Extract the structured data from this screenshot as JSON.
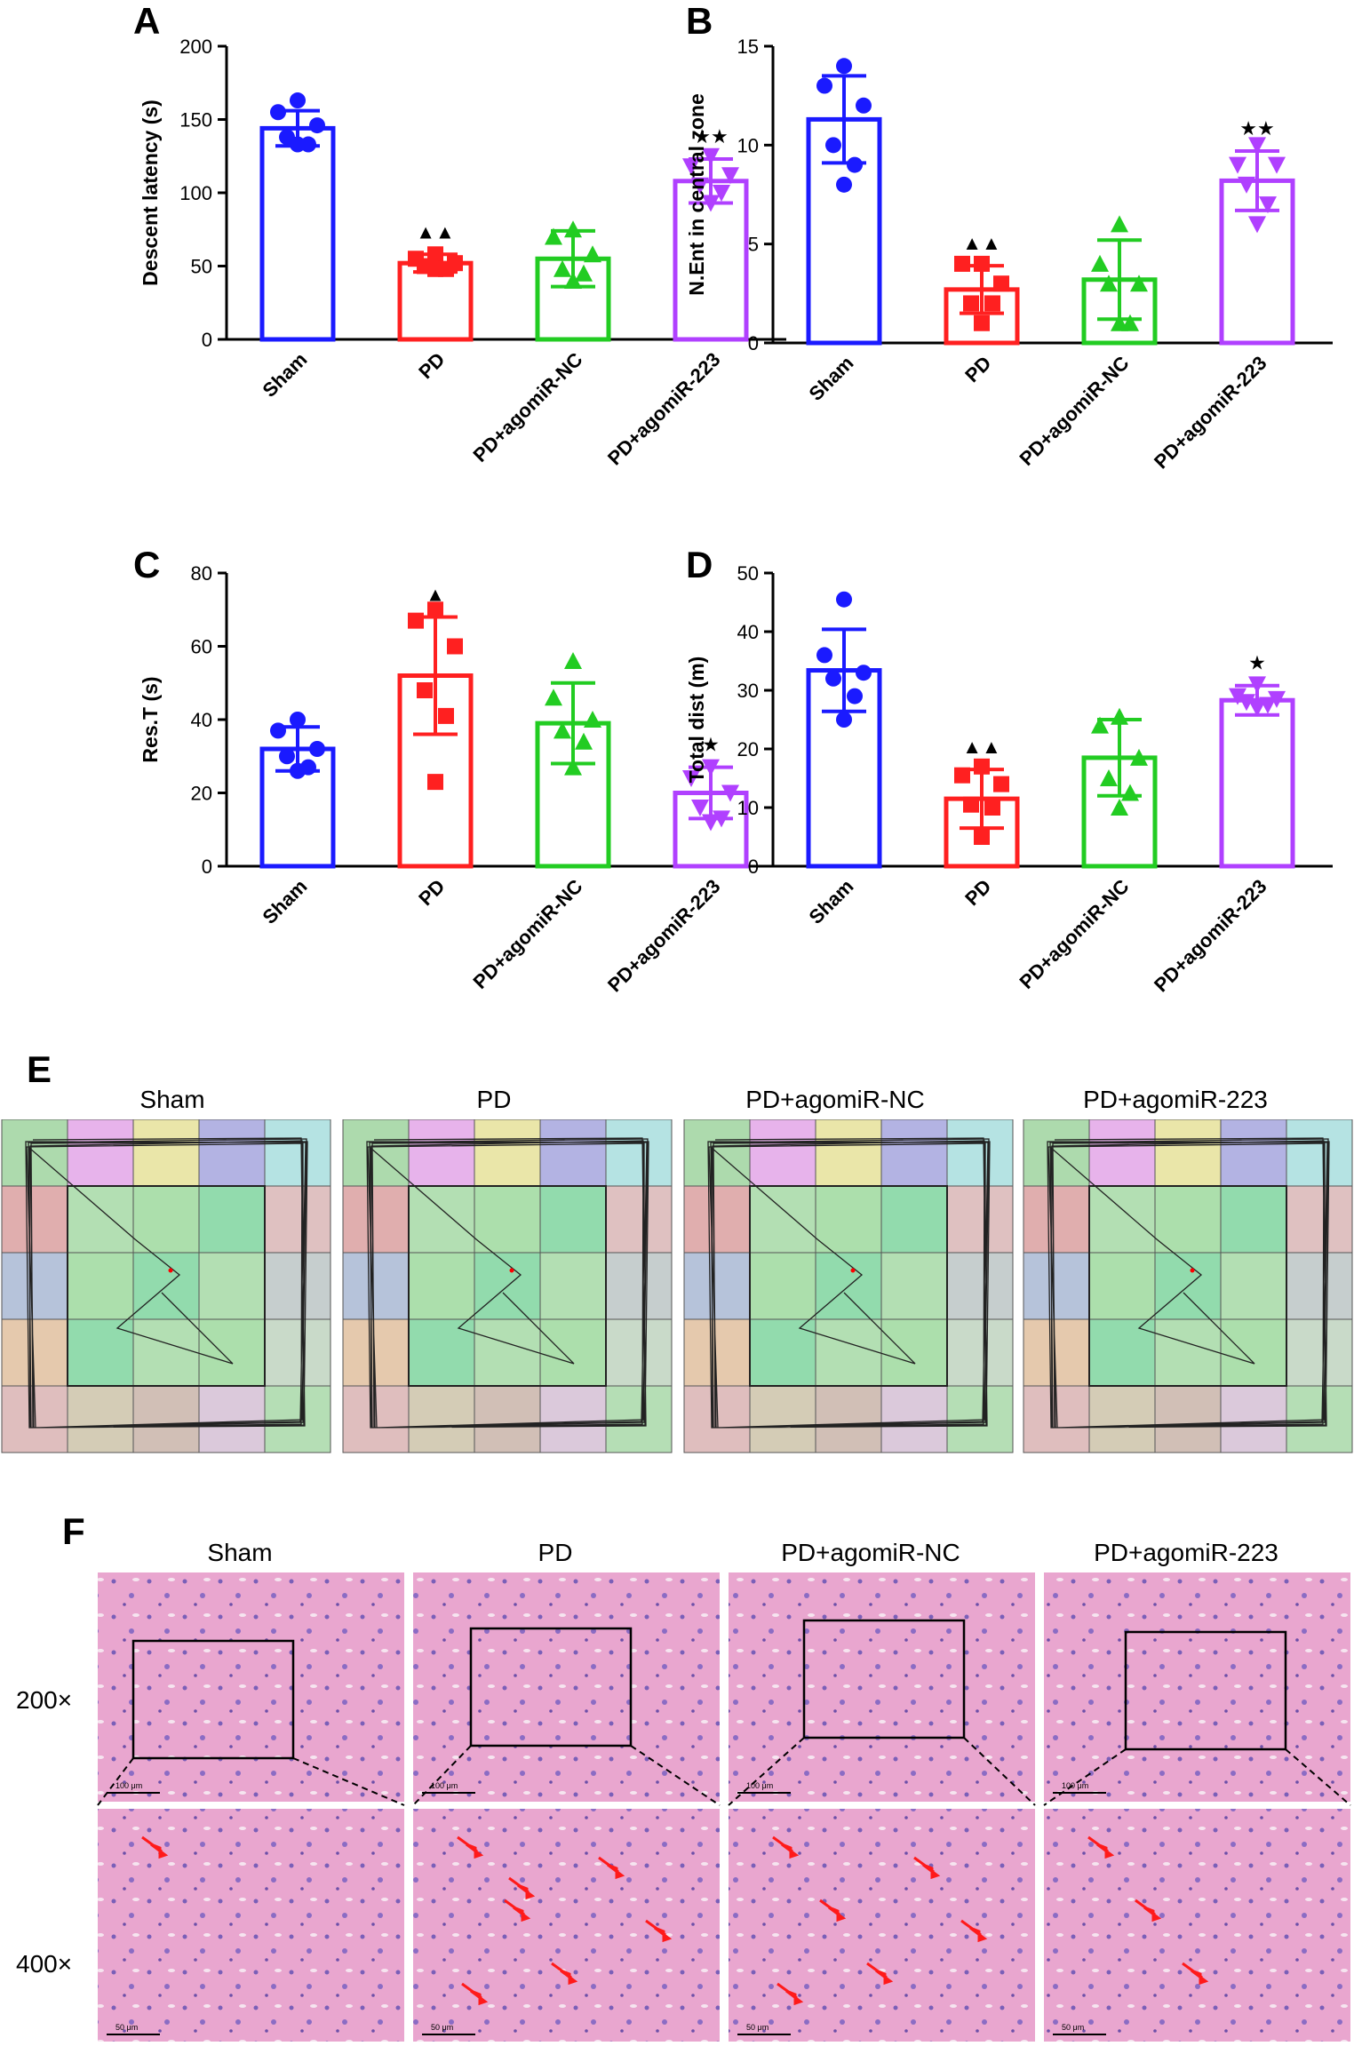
{
  "panels": {
    "A": "A",
    "B": "B",
    "C": "C",
    "D": "D",
    "E": "E",
    "F": "F"
  },
  "colors": {
    "sham": "#1a1aff",
    "pd": "#ff2020",
    "nc": "#22cc22",
    "agomir": "#b040ff"
  },
  "groups": [
    "Sham",
    "PD",
    "PD+agomiR-NC",
    "PD+agomiR-223"
  ],
  "chart_data": [
    {
      "id": "A",
      "type": "bar",
      "ylabel": "Descent latency (s)",
      "ylim": [
        0,
        200
      ],
      "ticks": [
        0,
        50,
        100,
        150,
        200
      ],
      "categories": [
        "Sham",
        "PD",
        "PD+agomiR-NC",
        "PD+agomiR-223"
      ],
      "values": [
        144,
        52,
        55,
        108
      ],
      "sd": [
        12,
        6,
        19,
        15
      ],
      "points": [
        [
          163,
          155,
          146,
          138,
          133,
          133
        ],
        [
          58,
          55,
          52,
          50,
          48,
          48
        ],
        [
          75,
          70,
          58,
          48,
          45,
          40
        ],
        [
          125,
          118,
          112,
          105,
          100,
          93
        ]
      ],
      "marks": [
        "",
        "▲▲",
        "",
        "★★"
      ],
      "markers": [
        "circle",
        "square",
        "triangle",
        "triangle-down"
      ]
    },
    {
      "id": "B",
      "type": "bar",
      "ylabel": "N.Ent in central zone",
      "ylim": [
        0,
        15
      ],
      "ticks": [
        0,
        5,
        10,
        15
      ],
      "categories": [
        "Sham",
        "PD",
        "PD+agomiR-NC",
        "PD+agomiR-223"
      ],
      "values": [
        11.3,
        2.7,
        3.2,
        8.2
      ],
      "sd": [
        2.2,
        1.2,
        2.0,
        1.5
      ],
      "points": [
        [
          14,
          13,
          12,
          10,
          9,
          8
        ],
        [
          4,
          4,
          3,
          2,
          2,
          1
        ],
        [
          6,
          4,
          3,
          3,
          1,
          1
        ],
        [
          10,
          9,
          9,
          8,
          7,
          6
        ]
      ],
      "marks": [
        "",
        "▲▲",
        "",
        "★★"
      ],
      "markers": [
        "circle",
        "square",
        "triangle",
        "triangle-down"
      ]
    },
    {
      "id": "C",
      "type": "bar",
      "ylabel": "Res.T (s)",
      "ylim": [
        0,
        80
      ],
      "ticks": [
        0,
        20,
        40,
        60,
        80
      ],
      "categories": [
        "Sham",
        "PD",
        "PD+agomiR-NC",
        "PD+agomiR-223"
      ],
      "values": [
        32,
        52,
        39,
        20
      ],
      "sd": [
        6,
        16,
        11,
        7
      ],
      "points": [
        [
          40,
          37,
          32,
          30,
          27,
          26
        ],
        [
          70,
          67,
          60,
          48,
          41,
          23
        ],
        [
          56,
          46,
          40,
          37,
          34,
          27
        ],
        [
          27,
          24,
          20,
          16,
          13,
          12
        ]
      ],
      "marks": [
        "",
        "▲",
        "",
        "★"
      ],
      "markers": [
        "circle",
        "square",
        "triangle",
        "triangle-down"
      ]
    },
    {
      "id": "D",
      "type": "bar",
      "ylabel": "Total dist (m)",
      "ylim": [
        0,
        50
      ],
      "ticks": [
        0,
        10,
        20,
        30,
        40,
        50
      ],
      "categories": [
        "Sham",
        "PD",
        "PD+agomiR-NC",
        "PD+agomiR-223"
      ],
      "values": [
        33.4,
        11.5,
        18.5,
        28.3
      ],
      "sd": [
        7,
        5,
        6.5,
        2.5
      ],
      "points": [
        [
          45.5,
          36,
          33,
          32,
          29,
          25
        ],
        [
          17,
          15.5,
          14,
          10.5,
          10,
          5
        ],
        [
          25.5,
          24,
          18.5,
          15,
          12.5,
          10
        ],
        [
          31,
          29,
          28.5,
          28,
          27.5,
          27
        ]
      ],
      "marks": [
        "",
        "▲▲",
        "",
        "★"
      ],
      "markers": [
        "circle",
        "square",
        "triangle",
        "triangle-down"
      ]
    }
  ],
  "magnifications": [
    "200×",
    "400×"
  ],
  "scalebars": [
    "100 μm",
    "50 μm"
  ]
}
